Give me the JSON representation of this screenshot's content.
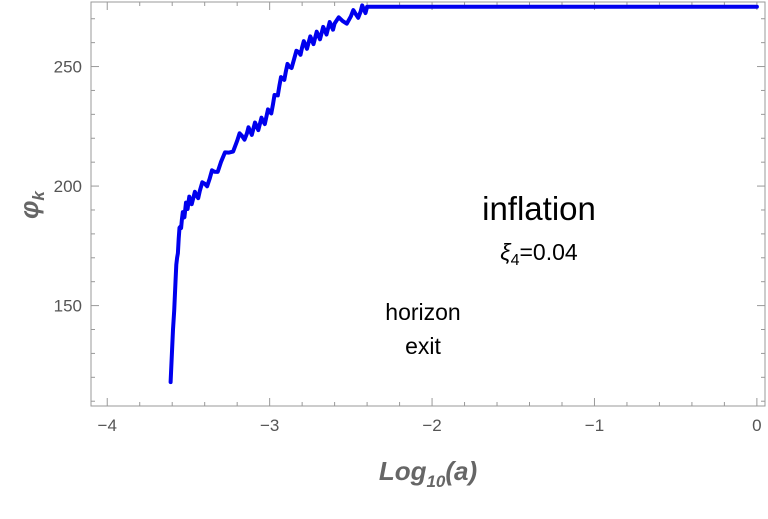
{
  "chart_data": {
    "type": "line",
    "title": "",
    "xlabel": {
      "base": "Log",
      "sub": "10",
      "rest": "(a)"
    },
    "ylabel": {
      "base": "φ",
      "sub": "k"
    },
    "xlim": [
      -4.1,
      0.05
    ],
    "ylim": [
      108,
      277
    ],
    "x_ticks": [
      -4,
      -3,
      -2,
      -1,
      0
    ],
    "x_tick_labels": [
      "−4",
      "−3",
      "−2",
      "−1",
      "0"
    ],
    "y_ticks": [
      150,
      200,
      250
    ],
    "y_tick_labels": [
      "150",
      "200",
      "250"
    ],
    "grid": false,
    "legend": "none",
    "colors": {
      "line": "#0000ee",
      "frame": "#999999",
      "text": "#555555"
    },
    "annotations": {
      "inflation": "inflation",
      "xi_symbol": "ξ",
      "xi_sub": "4",
      "xi_value": "=0.04",
      "horizon_line1": "horizon",
      "horizon_line2": "exit"
    },
    "series": [
      {
        "color": "#0000ee",
        "x": [
          -3.61,
          -3.595,
          -3.58,
          -3.57,
          -3.56,
          -3.55,
          -3.54,
          -3.53,
          -3.52,
          -3.51,
          -3.5,
          -3.49,
          -3.47,
          -3.45,
          -3.43,
          -3.4,
          -3.37,
          -3.34,
          -3.3,
          -3.25,
          -3.2,
          -3.17,
          -3.14,
          -3.12,
          -3.1,
          -3.08,
          -3.06,
          -3.04,
          -3.02,
          -3.0,
          -2.98,
          -2.96,
          -2.94,
          -2.92,
          -2.9,
          -2.88,
          -2.85,
          -2.82,
          -2.8,
          -2.78,
          -2.76,
          -2.74,
          -2.72,
          -2.7,
          -2.68,
          -2.66,
          -2.64,
          -2.62,
          -2.6,
          -2.55,
          -2.5,
          -2.47,
          -2.44,
          -2.42,
          -2.4,
          -2.2,
          -2.0,
          -1.8,
          -1.6,
          -1.4,
          -1.2,
          -1.0,
          -0.8,
          -0.6,
          -0.4,
          -0.2,
          0.0
        ],
        "y": [
          118,
          140,
          160,
          170,
          178,
          183,
          186,
          188,
          190,
          192,
          193,
          194,
          195,
          196,
          198,
          201,
          203,
          206,
          210,
          214,
          219,
          221,
          222,
          223,
          224,
          225,
          226,
          227,
          229,
          231,
          234,
          238,
          242,
          245,
          248,
          250,
          253,
          256,
          258,
          259,
          260,
          261,
          262,
          263,
          264,
          265,
          266,
          267,
          268,
          269,
          271,
          272,
          273,
          274,
          275,
          275,
          275,
          275,
          275,
          275,
          275,
          275,
          275,
          275,
          275,
          275,
          275
        ]
      }
    ]
  }
}
